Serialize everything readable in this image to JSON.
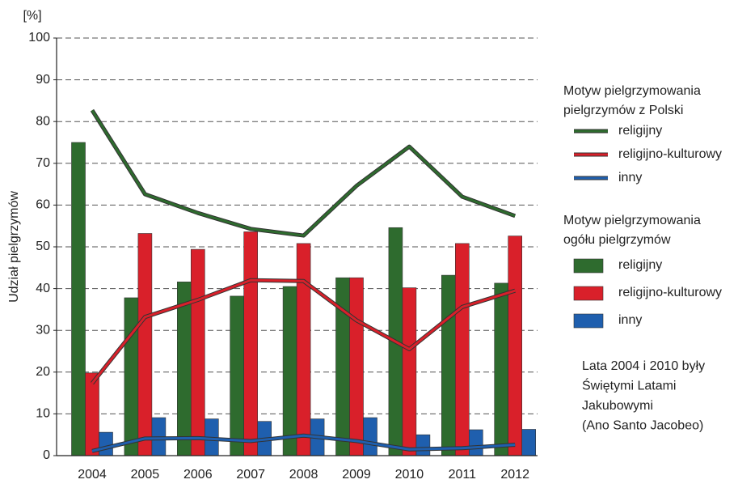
{
  "chart_data": {
    "type": "bar",
    "y_unit": "[%]",
    "y_label": "Udział pielgrzymów",
    "categories": [
      "2004",
      "2005",
      "2006",
      "2007",
      "2008",
      "2009",
      "2010",
      "2011",
      "2012"
    ],
    "ylim": [
      0,
      100
    ],
    "yticks": [
      0,
      10,
      20,
      30,
      40,
      50,
      60,
      70,
      80,
      90,
      100
    ],
    "grid": true,
    "line_legend_title": [
      "Motyw pielgrzymowania",
      "pielgrzymów z Polski"
    ],
    "bar_legend_title": [
      "Motyw pielgrzymowania",
      "ogółu pielgrzymów"
    ],
    "annotation": [
      "Lata 2004 i 2010 były",
      "Świętymi Latami",
      "Jakubowymi",
      "(Ano Santo Jacobeo)"
    ],
    "series": [
      {
        "name": "religijny",
        "mark": "line",
        "color": "#2e6b2e",
        "values": [
          82.7,
          62.6,
          58.1,
          54.3,
          52.7,
          64.6,
          74.0,
          62.0,
          57.4
        ]
      },
      {
        "name": "religijno-kulturowy",
        "mark": "line",
        "color": "#d9202a",
        "values": [
          17.3,
          33.2,
          37.3,
          42.0,
          41.8,
          32.4,
          25.5,
          35.6,
          39.5
        ]
      },
      {
        "name": "inny",
        "mark": "line",
        "color": "#1f5fae",
        "values": [
          1.1,
          4.1,
          4.2,
          3.5,
          4.8,
          3.5,
          1.5,
          1.8,
          2.6
        ]
      },
      {
        "name": "religijny",
        "mark": "bar",
        "color": "#2e6b2e",
        "values": [
          75,
          37.8,
          41.6,
          38.2,
          40.5,
          42.6,
          54.6,
          43.2,
          41.3
        ]
      },
      {
        "name": "religijno-kulturowy",
        "mark": "bar",
        "color": "#d9202a",
        "values": [
          19.8,
          53.2,
          49.4,
          53.6,
          50.8,
          42.6,
          40.2,
          50.8,
          52.6
        ]
      },
      {
        "name": "inny",
        "mark": "bar",
        "color": "#1f5fae",
        "values": [
          5.6,
          9.1,
          8.8,
          8.2,
          8.8,
          9.1,
          5.0,
          6.2,
          6.3
        ]
      }
    ]
  }
}
